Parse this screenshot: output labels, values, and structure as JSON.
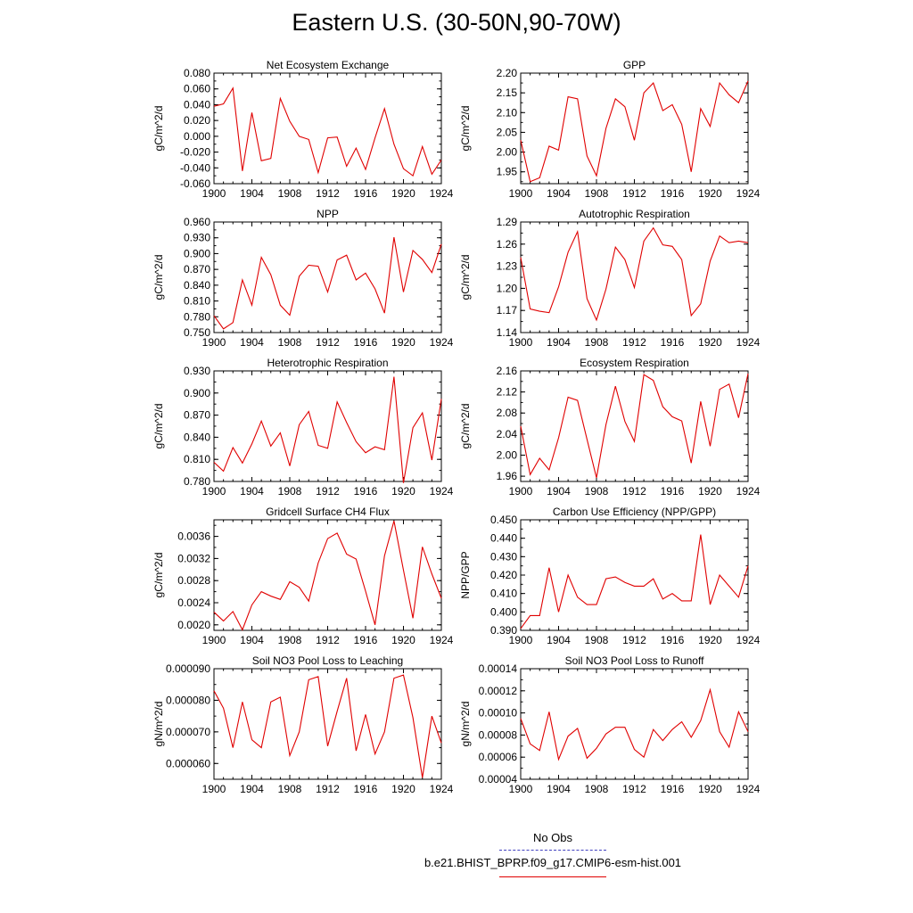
{
  "title": "Eastern U.S. (30-50N,90-70W)",
  "legend": {
    "items": [
      {
        "label": "No Obs",
        "color": "#4040c0",
        "style": "dashed"
      },
      {
        "label": "b.e21.BHIST_BPRP.f09_g17.CMIP6-esm-hist.001",
        "color": "#e00000",
        "style": "solid"
      }
    ]
  },
  "chart_data": [
    {
      "type": "line",
      "title": "Net Ecosystem Exchange",
      "ylabel": "gC/m^2/d",
      "xlim": [
        1900,
        1924
      ],
      "xticks": [
        "1900",
        "1904",
        "1908",
        "1912",
        "1916",
        "1920",
        "1924"
      ],
      "ylim": [
        -0.06,
        0.08
      ],
      "yticks": [
        "-0.060",
        "-0.040",
        "-0.020",
        "0.000",
        "0.020",
        "0.040",
        "0.060",
        "0.080"
      ],
      "ytick_values": [
        -0.06,
        -0.04,
        -0.02,
        0.0,
        0.02,
        0.04,
        0.06,
        0.08
      ],
      "series": [
        {
          "color": "#e00000",
          "x": [
            1900,
            1901,
            1902,
            1903,
            1904,
            1905,
            1906,
            1907,
            1908,
            1909,
            1910,
            1911,
            1912,
            1913,
            1914,
            1915,
            1916,
            1917,
            1918,
            1919,
            1920,
            1921,
            1922,
            1923,
            1924
          ],
          "values": [
            0.038,
            0.041,
            0.061,
            -0.044,
            0.03,
            -0.031,
            -0.028,
            0.048,
            0.019,
            0.0,
            -0.004,
            -0.046,
            -0.002,
            -0.001,
            -0.038,
            -0.015,
            -0.042,
            -0.002,
            0.035,
            -0.01,
            -0.041,
            -0.05,
            -0.013,
            -0.048,
            -0.03
          ]
        }
      ]
    },
    {
      "type": "line",
      "title": "GPP",
      "ylabel": "gC/m^2/d",
      "xlim": [
        1900,
        1924
      ],
      "xticks": [
        "1900",
        "1904",
        "1908",
        "1912",
        "1916",
        "1920",
        "1924"
      ],
      "ylim": [
        1.92,
        2.2
      ],
      "yticks": [
        "1.95",
        "2.00",
        "2.05",
        "2.10",
        "2.15",
        "2.20"
      ],
      "ytick_values": [
        1.95,
        2.0,
        2.05,
        2.1,
        2.15,
        2.2
      ],
      "series": [
        {
          "color": "#e00000",
          "x": [
            1900,
            1901,
            1902,
            1903,
            1904,
            1905,
            1906,
            1907,
            1908,
            1909,
            1910,
            1911,
            1912,
            1913,
            1914,
            1915,
            1916,
            1917,
            1918,
            1919,
            1920,
            1921,
            1922,
            1923,
            1924
          ],
          "values": [
            2.03,
            1.925,
            1.935,
            2.015,
            2.005,
            2.14,
            2.135,
            1.99,
            1.94,
            2.06,
            2.135,
            2.115,
            2.03,
            2.15,
            2.175,
            2.105,
            2.12,
            2.07,
            1.95,
            2.11,
            2.065,
            2.175,
            2.145,
            2.125,
            2.18
          ]
        }
      ]
    },
    {
      "type": "line",
      "title": "NPP",
      "ylabel": "gC/m^2/d",
      "xlim": [
        1900,
        1924
      ],
      "xticks": [
        "1900",
        "1904",
        "1908",
        "1912",
        "1916",
        "1920",
        "1924"
      ],
      "ylim": [
        0.75,
        0.96
      ],
      "yticks": [
        "0.750",
        "0.780",
        "0.810",
        "0.840",
        "0.870",
        "0.900",
        "0.930",
        "0.960"
      ],
      "ytick_values": [
        0.75,
        0.78,
        0.81,
        0.84,
        0.87,
        0.9,
        0.93,
        0.96
      ],
      "series": [
        {
          "color": "#e00000",
          "x": [
            1900,
            1901,
            1902,
            1903,
            1904,
            1905,
            1906,
            1907,
            1908,
            1909,
            1910,
            1911,
            1912,
            1913,
            1914,
            1915,
            1916,
            1917,
            1918,
            1919,
            1920,
            1921,
            1922,
            1923,
            1924
          ],
          "values": [
            0.782,
            0.757,
            0.769,
            0.85,
            0.802,
            0.893,
            0.86,
            0.802,
            0.783,
            0.857,
            0.878,
            0.876,
            0.827,
            0.888,
            0.897,
            0.85,
            0.863,
            0.833,
            0.787,
            0.931,
            0.827,
            0.906,
            0.889,
            0.864,
            0.918
          ]
        }
      ]
    },
    {
      "type": "line",
      "title": "Autotrophic Respiration",
      "ylabel": "gC/m^2/d",
      "xlim": [
        1900,
        1924
      ],
      "xticks": [
        "1900",
        "1904",
        "1908",
        "1912",
        "1916",
        "1920",
        "1924"
      ],
      "ylim": [
        1.14,
        1.29
      ],
      "yticks": [
        "1.14",
        "1.17",
        "1.20",
        "1.23",
        "1.26",
        "1.29"
      ],
      "ytick_values": [
        1.14,
        1.17,
        1.2,
        1.23,
        1.26,
        1.29
      ],
      "series": [
        {
          "color": "#e00000",
          "x": [
            1900,
            1901,
            1902,
            1903,
            1904,
            1905,
            1906,
            1907,
            1908,
            1909,
            1910,
            1911,
            1912,
            1913,
            1914,
            1915,
            1916,
            1917,
            1918,
            1919,
            1920,
            1921,
            1922,
            1923,
            1924
          ],
          "values": [
            1.242,
            1.172,
            1.169,
            1.167,
            1.202,
            1.249,
            1.277,
            1.186,
            1.157,
            1.199,
            1.256,
            1.239,
            1.201,
            1.264,
            1.282,
            1.259,
            1.257,
            1.239,
            1.163,
            1.179,
            1.237,
            1.271,
            1.262,
            1.264,
            1.262
          ]
        }
      ]
    },
    {
      "type": "line",
      "title": "Heterotrophic Respiration",
      "ylabel": "gC/m^2/d",
      "xlim": [
        1900,
        1924
      ],
      "xticks": [
        "1900",
        "1904",
        "1908",
        "1912",
        "1916",
        "1920",
        "1924"
      ],
      "ylim": [
        0.78,
        0.93
      ],
      "yticks": [
        "0.780",
        "0.810",
        "0.840",
        "0.870",
        "0.900",
        "0.930"
      ],
      "ytick_values": [
        0.78,
        0.81,
        0.84,
        0.87,
        0.9,
        0.93
      ],
      "series": [
        {
          "color": "#e00000",
          "x": [
            1900,
            1901,
            1902,
            1903,
            1904,
            1905,
            1906,
            1907,
            1908,
            1909,
            1910,
            1911,
            1912,
            1913,
            1914,
            1915,
            1916,
            1917,
            1918,
            1919,
            1920,
            1921,
            1922,
            1923,
            1924
          ],
          "values": [
            0.806,
            0.794,
            0.826,
            0.805,
            0.831,
            0.862,
            0.828,
            0.846,
            0.801,
            0.857,
            0.875,
            0.829,
            0.825,
            0.888,
            0.86,
            0.834,
            0.819,
            0.827,
            0.823,
            0.922,
            0.778,
            0.853,
            0.873,
            0.809,
            0.892
          ]
        }
      ]
    },
    {
      "type": "line",
      "title": "Ecosystem Respiration",
      "ylabel": "gC/m^2/d",
      "xlim": [
        1900,
        1924
      ],
      "xticks": [
        "1900",
        "1904",
        "1908",
        "1912",
        "1916",
        "1920",
        "1924"
      ],
      "ylim": [
        1.95,
        2.16
      ],
      "yticks": [
        "1.96",
        "2.00",
        "2.04",
        "2.08",
        "2.12",
        "2.16"
      ],
      "ytick_values": [
        1.96,
        2.0,
        2.04,
        2.08,
        2.12,
        2.16
      ],
      "series": [
        {
          "color": "#e00000",
          "x": [
            1900,
            1901,
            1902,
            1903,
            1904,
            1905,
            1906,
            1907,
            1908,
            1909,
            1910,
            1911,
            1912,
            1913,
            1914,
            1915,
            1916,
            1917,
            1918,
            1919,
            1920,
            1921,
            1922,
            1923,
            1924
          ],
          "values": [
            2.055,
            1.963,
            1.994,
            1.972,
            2.033,
            2.11,
            2.104,
            2.03,
            1.957,
            2.058,
            2.131,
            2.064,
            2.026,
            2.153,
            2.142,
            2.092,
            2.073,
            2.065,
            1.985,
            2.102,
            2.017,
            2.125,
            2.135,
            2.071,
            2.155
          ]
        }
      ]
    },
    {
      "type": "line",
      "title": "Gridcell Surface CH4 Flux",
      "ylabel": "gC/m^2/d",
      "xlim": [
        1900,
        1924
      ],
      "xticks": [
        "1900",
        "1904",
        "1908",
        "1912",
        "1916",
        "1920",
        "1924"
      ],
      "ylim": [
        0.0019,
        0.0039
      ],
      "yticks": [
        "0.0020",
        "0.0024",
        "0.0028",
        "0.0032",
        "0.0036"
      ],
      "ytick_values": [
        0.002,
        0.0024,
        0.0028,
        0.0032,
        0.0036
      ],
      "series": [
        {
          "color": "#e00000",
          "x": [
            1900,
            1901,
            1902,
            1903,
            1904,
            1905,
            1906,
            1907,
            1908,
            1909,
            1910,
            1911,
            1912,
            1913,
            1914,
            1915,
            1916,
            1917,
            1918,
            1919,
            1920,
            1921,
            1922,
            1923,
            1924
          ],
          "values": [
            0.00223,
            0.00207,
            0.00224,
            0.00191,
            0.00236,
            0.0026,
            0.00252,
            0.00246,
            0.00278,
            0.00268,
            0.00243,
            0.00312,
            0.00356,
            0.00366,
            0.00328,
            0.00319,
            0.00261,
            0.002,
            0.00325,
            0.00388,
            0.00299,
            0.00212,
            0.00341,
            0.00292,
            0.00248
          ]
        }
      ]
    },
    {
      "type": "line",
      "title": "Carbon Use Efficiency (NPP/GPP)",
      "ylabel": "NPP/GPP",
      "xlim": [
        1900,
        1924
      ],
      "xticks": [
        "1900",
        "1904",
        "1908",
        "1912",
        "1916",
        "1920",
        "1924"
      ],
      "ylim": [
        0.39,
        0.45
      ],
      "yticks": [
        "0.390",
        "0.400",
        "0.410",
        "0.420",
        "0.430",
        "0.440",
        "0.450"
      ],
      "ytick_values": [
        0.39,
        0.4,
        0.41,
        0.42,
        0.43,
        0.44,
        0.45
      ],
      "series": [
        {
          "color": "#e00000",
          "x": [
            1900,
            1901,
            1902,
            1903,
            1904,
            1905,
            1906,
            1907,
            1908,
            1909,
            1910,
            1911,
            1912,
            1913,
            1914,
            1915,
            1916,
            1917,
            1918,
            1919,
            1920,
            1921,
            1922,
            1923,
            1924
          ],
          "values": [
            0.391,
            0.398,
            0.398,
            0.424,
            0.4,
            0.42,
            0.408,
            0.404,
            0.404,
            0.418,
            0.419,
            0.416,
            0.414,
            0.414,
            0.418,
            0.407,
            0.41,
            0.406,
            0.406,
            0.442,
            0.404,
            0.42,
            0.414,
            0.408,
            0.425
          ]
        }
      ]
    },
    {
      "type": "line",
      "title": "Soil NO3 Pool Loss to Leaching",
      "ylabel": "gN/m^2/d",
      "xlim": [
        1900,
        1924
      ],
      "xticks": [
        "1900",
        "1904",
        "1908",
        "1912",
        "1916",
        "1920",
        "1924"
      ],
      "ylim": [
        5.5e-05,
        9e-05
      ],
      "yticks": [
        "0.000060",
        "0.000070",
        "0.000080",
        "0.000090"
      ],
      "ytick_values": [
        6e-05,
        7e-05,
        8e-05,
        9e-05
      ],
      "series": [
        {
          "color": "#e00000",
          "x": [
            1900,
            1901,
            1902,
            1903,
            1904,
            1905,
            1906,
            1907,
            1908,
            1909,
            1910,
            1911,
            1912,
            1913,
            1914,
            1915,
            1916,
            1917,
            1918,
            1919,
            1920,
            1921,
            1922,
            1923,
            1924
          ],
          "values": [
            8.3e-05,
            7.75e-05,
            6.5e-05,
            7.95e-05,
            6.75e-05,
            6.5e-05,
            7.95e-05,
            8.1e-05,
            6.25e-05,
            7e-05,
            8.65e-05,
            8.75e-05,
            6.55e-05,
            7.65e-05,
            8.7e-05,
            6.4e-05,
            7.55e-05,
            6.3e-05,
            7e-05,
            8.7e-05,
            8.8e-05,
            7.45e-05,
            5.55e-05,
            7.5e-05,
            6.65e-05
          ]
        }
      ]
    },
    {
      "type": "line",
      "title": "Soil NO3 Pool Loss to Runoff",
      "ylabel": "gN/m^2/d",
      "xlim": [
        1900,
        1924
      ],
      "xticks": [
        "1900",
        "1904",
        "1908",
        "1912",
        "1916",
        "1920",
        "1924"
      ],
      "ylim": [
        4e-05,
        0.00014
      ],
      "yticks": [
        "0.00004",
        "0.00006",
        "0.00008",
        "0.00010",
        "0.00012",
        "0.00014"
      ],
      "ytick_values": [
        4e-05,
        6e-05,
        8e-05,
        0.0001,
        0.00012,
        0.00014
      ],
      "series": [
        {
          "color": "#e00000",
          "x": [
            1900,
            1901,
            1902,
            1903,
            1904,
            1905,
            1906,
            1907,
            1908,
            1909,
            1910,
            1911,
            1912,
            1913,
            1914,
            1915,
            1916,
            1917,
            1918,
            1919,
            1920,
            1921,
            1922,
            1923,
            1924
          ],
          "values": [
            9.5e-05,
            7.2e-05,
            6.6e-05,
            0.000101,
            5.8e-05,
            7.9e-05,
            8.6e-05,
            5.9e-05,
            6.8e-05,
            8.1e-05,
            8.7e-05,
            8.7e-05,
            6.7e-05,
            6e-05,
            8.5e-05,
            7.5e-05,
            8.5e-05,
            9.2e-05,
            7.8e-05,
            9.3e-05,
            0.000121,
            8.3e-05,
            6.9e-05,
            0.000101,
            8.3e-05
          ]
        }
      ]
    }
  ]
}
